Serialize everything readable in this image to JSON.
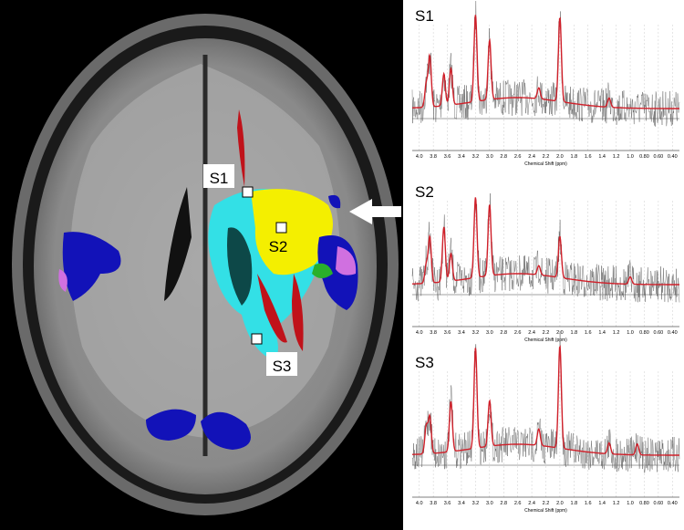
{
  "brain_labels": [
    "S1",
    "S2",
    "S3"
  ],
  "spectra": [
    {
      "title": "S1"
    },
    {
      "title": "S2"
    },
    {
      "title": "S3"
    }
  ],
  "x_axis_label": "Chemical Shift (ppm)",
  "tick_labels": [
    "4.0",
    "3.8",
    "3.6",
    "3.4",
    "3.2",
    "3.0",
    "2.8",
    "2.6",
    "2.4",
    "2.2",
    "2.0",
    "1.8",
    "1.6",
    "1.4",
    "1.2",
    "1.0",
    "0.80",
    "0.60",
    "0.40"
  ]
}
